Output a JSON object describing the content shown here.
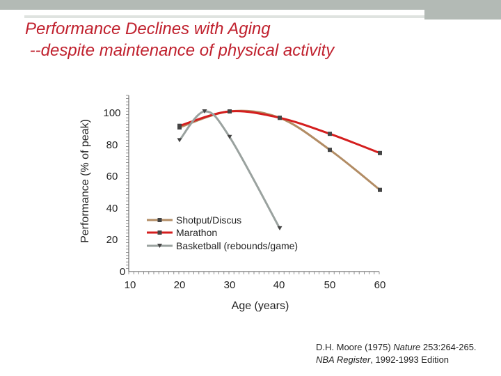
{
  "slide": {
    "title_line1": "Performance Declines with Aging",
    "title_line2": " --despite maintenance of physical activity"
  },
  "citation": {
    "line1_author": "D.H. Moore (1975) ",
    "line1_journal": "Nature",
    "line1_ref": " 253:264-265.",
    "line2_source": "NBA Register",
    "line2_rest": ", 1992-1993 Edition"
  },
  "colors": {
    "shotput": "#b28c64",
    "marathon": "#d41e1e",
    "basketball": "#9aa29f",
    "title": "#c0212e",
    "marker": "#333333"
  },
  "chart_data": {
    "type": "line",
    "title": "",
    "xlabel": "Age (years)",
    "ylabel": "Performance (% of peak)",
    "xlim": [
      10,
      60
    ],
    "ylim": [
      0,
      100
    ],
    "x_ticks": [
      "10",
      "20",
      "30",
      "40",
      "50",
      "60"
    ],
    "y_ticks": [
      "0",
      "20",
      "40",
      "60",
      "80",
      "100"
    ],
    "legend_position": "bottom-center",
    "series": [
      {
        "name": "Shotput/Discus",
        "color": "#b28c64",
        "marker": "square",
        "points": [
          [
            20,
            90
          ],
          [
            30,
            100
          ],
          [
            40,
            96
          ],
          [
            50,
            76
          ],
          [
            60,
            51
          ]
        ]
      },
      {
        "name": "Marathon",
        "color": "#d41e1e",
        "marker": "square",
        "points": [
          [
            20,
            91
          ],
          [
            30,
            100
          ],
          [
            40,
            96
          ],
          [
            50,
            86
          ],
          [
            60,
            74
          ]
        ]
      },
      {
        "name": "Basketball (rebounds/game)",
        "color": "#9aa29f",
        "marker": "triangle",
        "points": [
          [
            20,
            82
          ],
          [
            25,
            100
          ],
          [
            30,
            84
          ],
          [
            40,
            27
          ]
        ]
      }
    ]
  }
}
